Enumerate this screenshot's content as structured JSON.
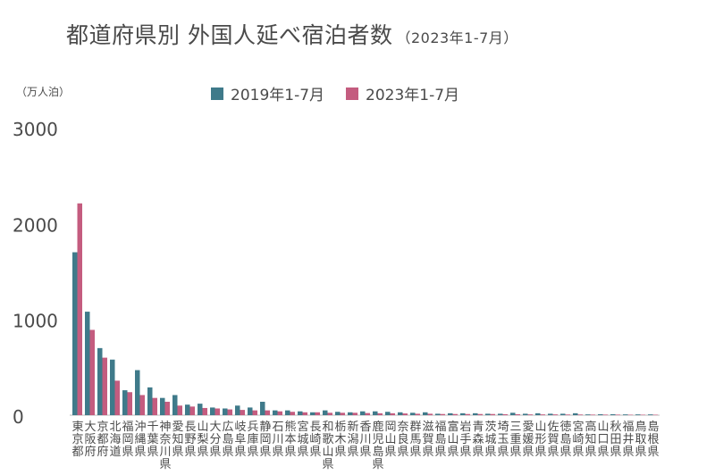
{
  "chart_data": {
    "type": "bar",
    "title": "都道府県別 外国人延べ宿泊者数",
    "subtitle": "（2023年1-7月）",
    "ylabel": "（万人泊）",
    "xlabel": "",
    "ylim": [
      0,
      3000
    ],
    "yticks": [
      "0",
      "1000",
      "2000",
      "3000"
    ],
    "grid": false,
    "legend_position": "top-center",
    "colors": {
      "2019": "#3f7a8a",
      "2023": "#c45c7f"
    },
    "categories": [
      "東京都",
      "大阪府",
      "京都府",
      "北海道",
      "福岡県",
      "沖縄県",
      "千葉県",
      "神奈川県",
      "愛知県",
      "長野県",
      "山梨県",
      "大分県",
      "広島県",
      "岐阜県",
      "兵庫県",
      "静岡県",
      "石川県",
      "熊本県",
      "宮城県",
      "長崎県",
      "和歌山県",
      "栃木県",
      "新潟県",
      "香川県",
      "鹿児島県",
      "岡山県",
      "奈良県",
      "群馬県",
      "滋賀県",
      "福島県",
      "富山県",
      "岩手県",
      "青森県",
      "茨城県",
      "埼玉県",
      "三重県",
      "愛媛県",
      "山形県",
      "佐賀県",
      "徳島県",
      "宮崎県",
      "高知県",
      "山口県",
      "秋田県",
      "福井県",
      "鳥取県",
      "島根県"
    ],
    "series": [
      {
        "name": "2019年1-7月",
        "values": [
          1700,
          1080,
          700,
          580,
          260,
          470,
          290,
          180,
          210,
          110,
          120,
          80,
          70,
          100,
          80,
          140,
          50,
          50,
          40,
          30,
          50,
          35,
          30,
          40,
          40,
          35,
          30,
          25,
          30,
          15,
          20,
          20,
          20,
          15,
          15,
          25,
          15,
          20,
          15,
          15,
          20,
          8,
          10,
          10,
          8,
          8,
          8
        ]
      },
      {
        "name": "2023年1-7月",
        "values": [
          2210,
          890,
          600,
          360,
          240,
          210,
          180,
          140,
          100,
          90,
          75,
          70,
          60,
          55,
          50,
          50,
          40,
          35,
          30,
          30,
          25,
          25,
          25,
          22,
          20,
          20,
          18,
          15,
          15,
          12,
          12,
          12,
          12,
          12,
          10,
          10,
          8,
          8,
          8,
          7,
          7,
          6,
          6,
          6,
          5,
          5,
          5
        ]
      }
    ]
  }
}
